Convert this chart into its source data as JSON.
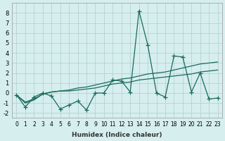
{
  "xlabel": "Humidex (Indice chaleur)",
  "x": [
    0,
    1,
    2,
    3,
    4,
    5,
    6,
    7,
    8,
    9,
    10,
    11,
    12,
    13,
    14,
    15,
    16,
    17,
    18,
    19,
    20,
    21,
    22,
    23
  ],
  "y_main": [
    -0.2,
    -1.4,
    -0.4,
    0.0,
    -0.3,
    -1.6,
    -1.2,
    -0.8,
    -1.7,
    0.0,
    0.0,
    1.3,
    1.2,
    0.1,
    8.2,
    4.8,
    0.0,
    -0.4,
    3.7,
    3.6,
    0.1,
    2.0,
    -0.6,
    -0.5
  ],
  "y_line1": [
    -0.2,
    -0.9,
    -0.6,
    -0.1,
    0.1,
    0.2,
    0.2,
    0.3,
    0.4,
    0.5,
    0.7,
    0.9,
    1.0,
    1.1,
    1.3,
    1.4,
    1.5,
    1.6,
    1.7,
    1.8,
    1.9,
    2.1,
    2.2,
    2.3
  ],
  "y_line2": [
    -0.2,
    -1.0,
    -0.7,
    -0.1,
    0.1,
    0.2,
    0.3,
    0.5,
    0.6,
    0.8,
    1.0,
    1.2,
    1.4,
    1.5,
    1.7,
    1.9,
    2.0,
    2.1,
    2.3,
    2.5,
    2.7,
    2.9,
    3.0,
    3.1
  ],
  "line_color": "#1a6b5a",
  "bg_color": "#d6eeee",
  "grid_color": "#b0cccc",
  "ylim": [
    -2.5,
    9.0
  ],
  "xlim": [
    -0.5,
    23.5
  ]
}
